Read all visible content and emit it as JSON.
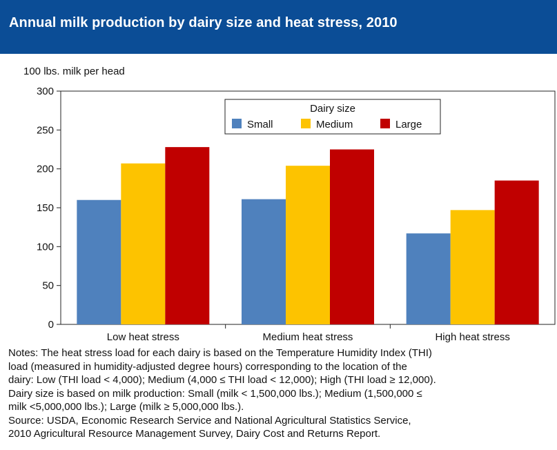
{
  "header": {
    "title": "Annual milk production by dairy size and heat stress, 2010"
  },
  "chart_data": {
    "type": "bar",
    "title": "Annual milk production by dairy size and heat stress, 2010",
    "ylabel": "100 lbs. milk per head",
    "xlabel": "",
    "ylim": [
      0,
      300
    ],
    "yticks": [
      0,
      50,
      100,
      150,
      200,
      250,
      300
    ],
    "categories": [
      "Low heat stress",
      "Medium heat stress",
      "High heat stress"
    ],
    "legend": {
      "title": "Dairy size",
      "placement": "top-center"
    },
    "series": [
      {
        "name": "Small",
        "color": "#4f81bd",
        "values": [
          160,
          161,
          117
        ]
      },
      {
        "name": "Medium",
        "color": "#fdc300",
        "values": [
          207,
          204,
          147
        ]
      },
      {
        "name": "Large",
        "color": "#c00000",
        "values": [
          228,
          225,
          185
        ]
      }
    ],
    "grid": false
  },
  "notes": {
    "lines": [
      "Notes: The heat stress load for each dairy is based on the Temperature Humidity Index (THI)",
      "load (measured in humidity-adjusted degree hours) corresponding to the location of the",
      "dairy: Low (THI load < 4,000); Medium (4,000 ≤ THI load < 12,000); High (THI load ≥ 12,000).",
      "Dairy size is based on milk production: Small (milk < 1,500,000 lbs.); Medium (1,500,000 ≤",
      "milk <5,000,000 lbs.); Large (milk ≥ 5,000,000 lbs.).",
      "Source: USDA, Economic Research Service and National Agricultural Statistics Service,",
      "2010 Agricultural Resource Management Survey, Dairy Cost and Returns Report."
    ]
  }
}
